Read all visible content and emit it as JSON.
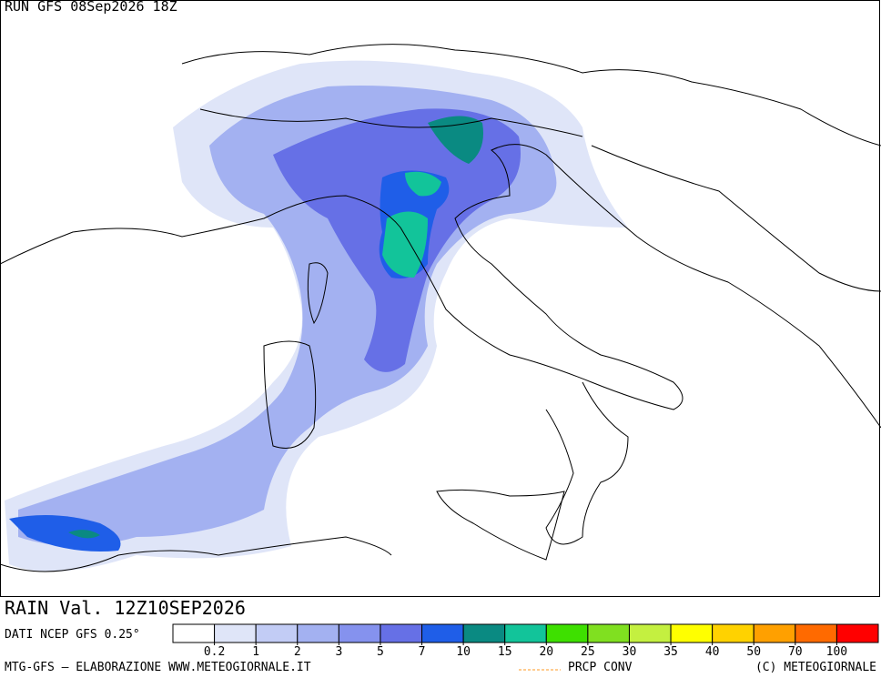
{
  "header": {
    "run": "RUN GFS 08Sep2026 18Z"
  },
  "field": {
    "label": "RAIN Val. 12Z10SEP2026"
  },
  "source": "DATI NCEP GFS 0.25°",
  "footer": {
    "left": "MTG-GFS – ELABORAZIONE WWW.METEOGIORNALE.IT",
    "middle": "PRCP CONV",
    "right": "(C) METEOGIORNALE"
  },
  "legend": {
    "levels": [
      0.2,
      1,
      2,
      3,
      5,
      7,
      10,
      15,
      20,
      25,
      30,
      35,
      40,
      50,
      70,
      100
    ],
    "colors": [
      "#ffffff",
      "#dfe5f8",
      "#c2ccf5",
      "#a3b1f1",
      "#8592ee",
      "#6670e6",
      "#1f5ee8",
      "#0a8a82",
      "#12c49a",
      "#3ee000",
      "#80e020",
      "#c4f040",
      "#ffff00",
      "#ffd200",
      "#ffa000",
      "#ff6a00",
      "#ff0000"
    ]
  }
}
